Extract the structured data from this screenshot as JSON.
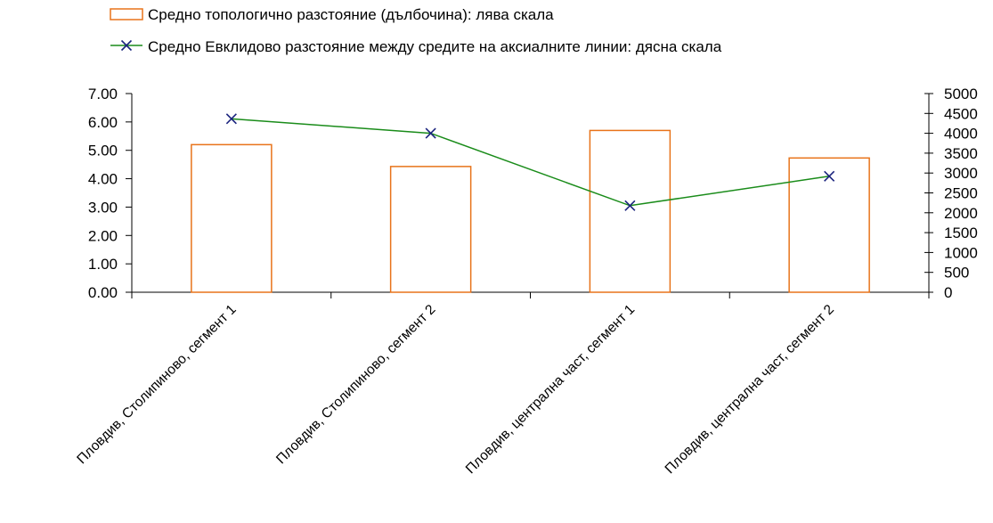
{
  "chart_data": {
    "type": "bar",
    "categories": [
      "Пловдив, Столипиново, сегмент 1",
      "Пловдив, Столипиново, сегмент 2",
      "Пловдив, централна част, сегмент 1",
      "Пловдив, централна част, сегмент 2"
    ],
    "series": [
      {
        "name": "Средно топологично разстояние (дълбочина): лява скала",
        "type": "bar",
        "axis": "left",
        "color": "#e8731a",
        "values": [
          5.2,
          4.43,
          5.7,
          4.73
        ]
      },
      {
        "name": "Средно Евклидово разстояние  между средите на аксиалните линии: дясна скала",
        "type": "line",
        "axis": "right",
        "color": "#1a8c1a",
        "marker_color": "#1a237e",
        "marker": "x",
        "values": [
          4365,
          4000,
          2180,
          2920
        ]
      }
    ],
    "y_left": {
      "ylim": [
        0,
        7
      ],
      "ticks": [
        "0.00",
        "1.00",
        "2.00",
        "3.00",
        "4.00",
        "5.00",
        "6.00",
        "7.00"
      ]
    },
    "y_right": {
      "ylim": [
        0,
        5000
      ],
      "ticks": [
        "0",
        "500",
        "1000",
        "1500",
        "2000",
        "2500",
        "3000",
        "3500",
        "4000",
        "4500",
        "5000"
      ]
    },
    "legend_position": "top",
    "grid": false
  }
}
